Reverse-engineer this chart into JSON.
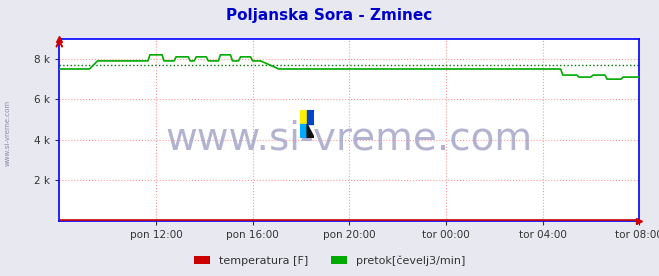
{
  "title": "Poljanska Sora - Zminec",
  "title_color": "#0000cc",
  "bg_color": "#e8e8f0",
  "plot_bg_color": "#ffffff",
  "grid_color": "#ff9999",
  "axis_color": "#0000ff",
  "ylabel_ticks": [
    "2 k",
    "4 k",
    "6 k",
    "8 k"
  ],
  "ytick_vals": [
    2000,
    4000,
    6000,
    8000
  ],
  "ylim": [
    0,
    9000
  ],
  "xlim": [
    0,
    288
  ],
  "xtick_positions": [
    48,
    96,
    144,
    192,
    240,
    288
  ],
  "xtick_labels": [
    "pon 12:00",
    "pon 16:00",
    "pon 20:00",
    "tor 00:00",
    "tor 04:00",
    "tor 08:00"
  ],
  "vgrid_positions": [
    48,
    96,
    144,
    192,
    240,
    288
  ],
  "legend_temperatura": "temperatura [F]",
  "legend_pretok": "pretok[čevelj3/min]",
  "line_green_color": "#00aa00",
  "line_red_color": "#cc0000",
  "avg_line_color": "#007700",
  "watermark": "www.si-vreme.com",
  "watermark_color": "#aaaacc",
  "watermark_fontsize": 28,
  "avg_value": 7720
}
